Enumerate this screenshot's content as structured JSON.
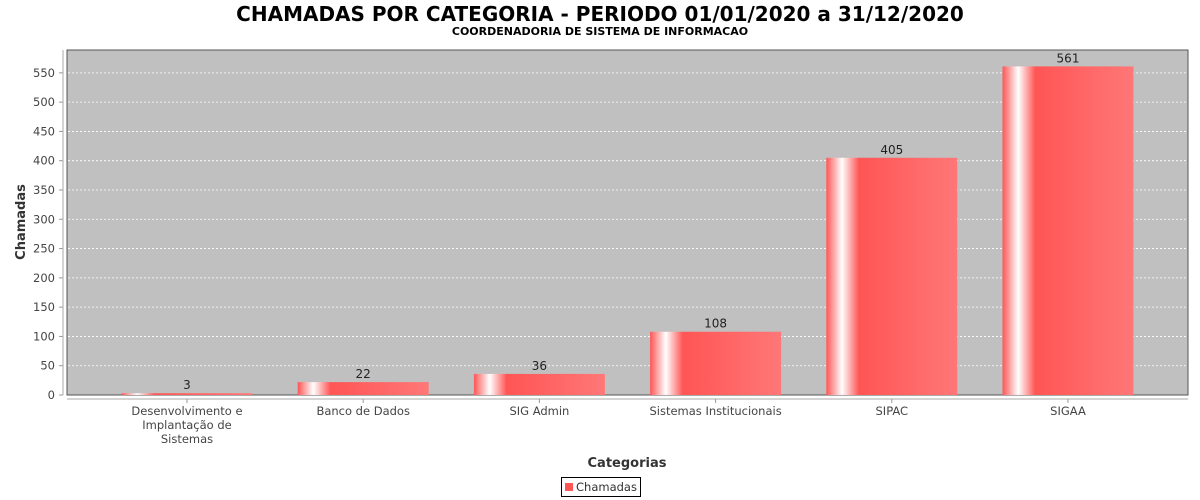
{
  "chart_data": {
    "type": "bar",
    "title": "CHAMADAS POR CATEGORIA - PERIODO 01/01/2020 a 31/12/2020",
    "subtitle": "COORDENADORIA DE SISTEMA DE INFORMACAO",
    "xlabel": "Categorias",
    "ylabel": "Chamadas",
    "categories": [
      [
        "Desenvolvimento e",
        "Implantação de",
        "Sistemas"
      ],
      [
        "Banco de Dados"
      ],
      [
        "SIG Admin"
      ],
      [
        "Sistemas Institucionais"
      ],
      [
        "SIPAC"
      ],
      [
        "SIGAA"
      ]
    ],
    "series": [
      {
        "name": "Chamadas",
        "values": [
          3,
          22,
          36,
          108,
          405,
          561
        ],
        "color": "#ff5555"
      }
    ],
    "ylim": [
      0,
      589
    ],
    "yticks": [
      0,
      50,
      100,
      150,
      200,
      250,
      300,
      350,
      400,
      450,
      500,
      550
    ],
    "grid": true,
    "legend": "bottom-center",
    "plot_background": "#c0c0c0"
  }
}
